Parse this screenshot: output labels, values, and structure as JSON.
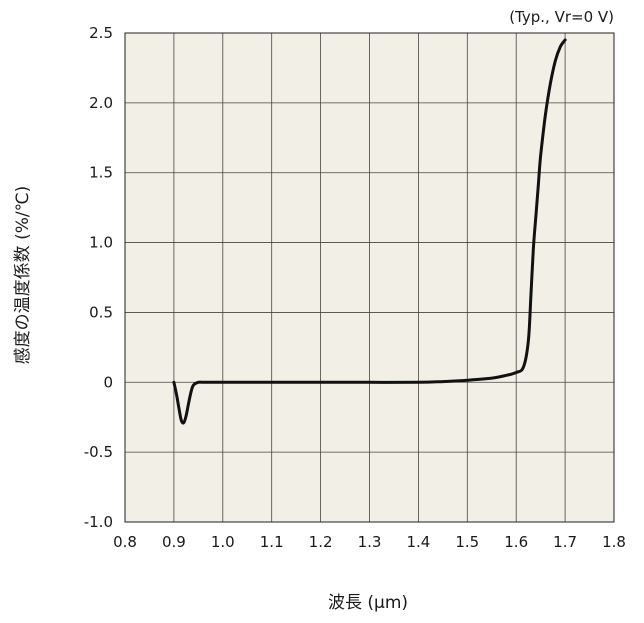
{
  "chart_data": {
    "type": "line",
    "annotation": "(Typ., Vr=0 V)",
    "xlabel": "波長 (μm)",
    "ylabel": "感度の温度係数 (%/℃)",
    "xlim": [
      0.8,
      1.8
    ],
    "ylim": [
      -1.0,
      2.5
    ],
    "grid": true,
    "background_color": "#f2efe6",
    "line_color": "#111111",
    "x_ticks": [
      "0.8",
      "0.9",
      "1.0",
      "1.1",
      "1.2",
      "1.3",
      "1.4",
      "1.5",
      "1.6",
      "1.7",
      "1.8"
    ],
    "y_ticks": [
      "2.5",
      "2.0",
      "1.5",
      "1.0",
      "0.5",
      "0",
      "-0.5",
      "-1.0"
    ],
    "series": [
      {
        "x": [
          0.9,
          0.905,
          0.91,
          0.915,
          0.92,
          0.925,
          0.93,
          0.935,
          0.94,
          0.95,
          0.96,
          1.0,
          1.1,
          1.2,
          1.3,
          1.4,
          1.45,
          1.5,
          1.55,
          1.58,
          1.6,
          1.615,
          1.625,
          1.63,
          1.635,
          1.64,
          1.645,
          1.65,
          1.66,
          1.67,
          1.68,
          1.69,
          1.7
        ],
        "values": [
          0.0,
          -0.08,
          -0.18,
          -0.27,
          -0.29,
          -0.24,
          -0.15,
          -0.07,
          -0.02,
          0.0,
          0.0,
          0.0,
          0.0,
          0.0,
          0.0,
          0.0,
          0.005,
          0.015,
          0.03,
          0.05,
          0.07,
          0.11,
          0.3,
          0.62,
          0.95,
          1.18,
          1.4,
          1.62,
          1.92,
          2.14,
          2.3,
          2.4,
          2.45
        ]
      }
    ]
  }
}
